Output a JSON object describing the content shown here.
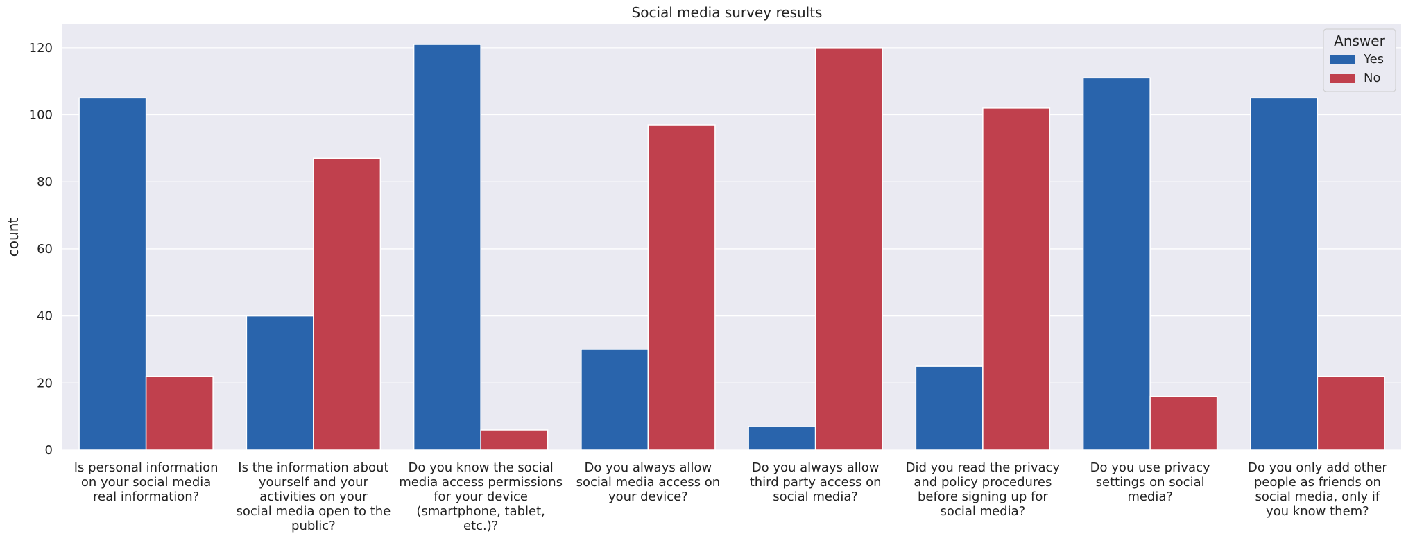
{
  "chart_data": {
    "type": "bar",
    "title": "Social media survey results",
    "xlabel": "",
    "ylabel": "count",
    "ylim": [
      0,
      127
    ],
    "yticks": [
      0,
      20,
      40,
      60,
      80,
      100,
      120
    ],
    "grid": true,
    "legend": {
      "title": "Answer",
      "position": "top-right"
    },
    "categories": [
      "Is personal information on your social media real information?",
      "Is the information about yourself and your activities on your social media open to the public?",
      "Do you know the social media access permissions for your device (smartphone, tablet, etc.)?",
      "Do you always allow social media access on your device?",
      "Do you always allow third party access on social media?",
      "Did you read the privacy and policy procedures before signing up for social media?",
      "Do you use privacy settings on social media?",
      "Do you only add other people as friends on social media, only if you know them?"
    ],
    "category_lines": [
      [
        "Is personal information",
        "on your social media",
        "real information?"
      ],
      [
        "Is the information about",
        "yourself and your",
        "activities on your",
        "social media open to the",
        "public?"
      ],
      [
        "Do you know the social",
        "media access permissions",
        "for your device",
        "(smartphone, tablet,",
        "etc.)?"
      ],
      [
        "Do you always allow",
        "social media access on",
        "your device?"
      ],
      [
        "Do you always allow",
        "third party access on",
        "social media?"
      ],
      [
        "Did you read the privacy",
        "and policy procedures",
        "before signing up for",
        "social media?"
      ],
      [
        "Do you use privacy",
        "settings on social",
        "media?"
      ],
      [
        "Do you only add other",
        "people as friends on",
        "social media, only if",
        "you know them?"
      ]
    ],
    "series": [
      {
        "name": "Yes",
        "color": "#2964ac",
        "values": [
          105,
          40,
          121,
          30,
          7,
          25,
          111,
          105
        ]
      },
      {
        "name": "No",
        "color": "#c0404d",
        "values": [
          22,
          87,
          6,
          97,
          120,
          102,
          16,
          22
        ]
      }
    ],
    "plot_background": "#eaeaf2",
    "grid_color": "#ffffff"
  }
}
